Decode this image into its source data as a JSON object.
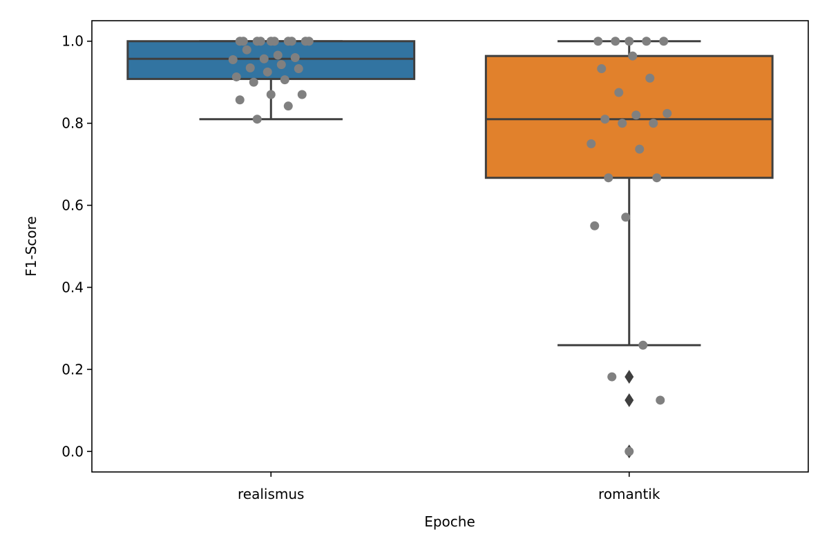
{
  "chart_data": {
    "type": "box",
    "xlabel": "Epoche",
    "ylabel": "F1-Score",
    "ylim": [
      -0.05,
      1.05
    ],
    "yticks": [
      "0.0",
      "0.2",
      "0.4",
      "0.6",
      "0.8",
      "1.0"
    ],
    "grid": false,
    "categories": [
      "realismus",
      "romantik"
    ],
    "boxes": [
      {
        "category": "realismus",
        "color": "#3274a1",
        "min": 0.81,
        "q1": 0.908,
        "median": 0.957,
        "q3": 1.0,
        "max": 1.0,
        "outliers": []
      },
      {
        "category": "romantik",
        "color": "#e1812c",
        "min": 0.259,
        "q1": 0.667,
        "median": 0.81,
        "q3": 0.964,
        "max": 1.0,
        "outliers": [
          0.182,
          0.125,
          0.0
        ]
      }
    ],
    "points": [
      {
        "category": "realismus",
        "values": [
          1.0,
          1.0,
          1.0,
          1.0,
          1.0,
          1.0,
          1.0,
          1.0,
          1.0,
          1.0,
          0.966,
          0.979,
          0.96,
          0.957,
          0.955,
          0.943,
          0.935,
          0.933,
          0.925,
          0.913,
          0.906,
          0.9,
          0.87,
          0.87,
          0.857,
          0.842,
          0.81
        ]
      },
      {
        "category": "romantik",
        "values": [
          1.0,
          1.0,
          1.0,
          1.0,
          1.0,
          0.964,
          0.933,
          0.91,
          0.875,
          0.824,
          0.82,
          0.81,
          0.8,
          0.8,
          0.75,
          0.737,
          0.667,
          0.667,
          0.571,
          0.55,
          0.259,
          0.182,
          0.125,
          0.0
        ]
      }
    ],
    "point_color": "#808080",
    "line_color": "#3f3f3f"
  }
}
